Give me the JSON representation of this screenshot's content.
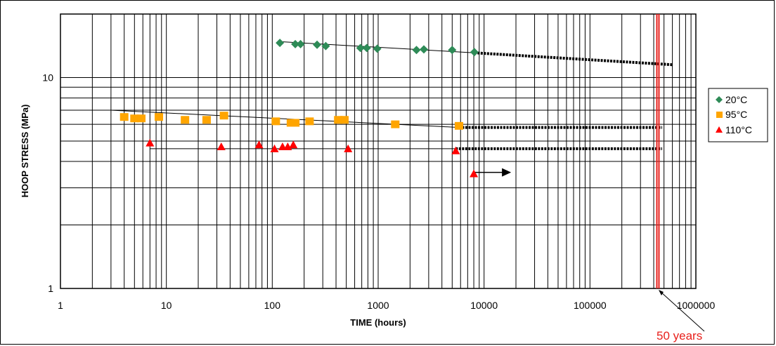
{
  "chart_data": {
    "type": "scatter",
    "title": "",
    "xlabel": "TIME (hours)",
    "ylabel": "HOOP STRESS (MPa)",
    "x_scale": "log",
    "y_scale": "log",
    "xlim": [
      1,
      1000000
    ],
    "ylim": [
      1,
      20
    ],
    "grid": true,
    "legend_position": "right",
    "x_tick_labels": [
      "1",
      "10",
      "100",
      "1000",
      "10000",
      "100000",
      "1000000"
    ],
    "y_tick_labels": [
      "1",
      "10"
    ],
    "series": [
      {
        "name": "20°C",
        "marker": "diamond",
        "color": "#2e8b57",
        "points": [
          [
            118,
            14.6
          ],
          [
            165,
            14.4
          ],
          [
            185,
            14.4
          ],
          [
            265,
            14.3
          ],
          [
            320,
            14.1
          ],
          [
            680,
            13.8
          ],
          [
            780,
            13.8
          ],
          [
            980,
            13.7
          ],
          [
            2300,
            13.5
          ],
          [
            2700,
            13.6
          ],
          [
            5000,
            13.5
          ],
          [
            8100,
            13.2
          ]
        ],
        "trend_solid": [
          [
            115,
            14.8
          ],
          [
            8100,
            13.1
          ]
        ],
        "trend_extrapolated": [
          [
            8100,
            13.1
          ],
          [
            600000,
            11.5
          ]
        ]
      },
      {
        "name": "95°C",
        "marker": "square",
        "color": "#ffa500",
        "points": [
          [
            4,
            6.5
          ],
          [
            5,
            6.4
          ],
          [
            5.8,
            6.4
          ],
          [
            8.5,
            6.5
          ],
          [
            15,
            6.3
          ],
          [
            24,
            6.3
          ],
          [
            35,
            6.6
          ],
          [
            108,
            6.2
          ],
          [
            150,
            6.1
          ],
          [
            165,
            6.1
          ],
          [
            225,
            6.2
          ],
          [
            420,
            6.3
          ],
          [
            480,
            6.3
          ],
          [
            1450,
            6.0
          ],
          [
            5800,
            5.9
          ]
        ],
        "trend_solid": [
          [
            3,
            7.0
          ],
          [
            5800,
            5.8
          ]
        ],
        "trend_extrapolated": [
          [
            5800,
            5.8
          ],
          [
            480000,
            5.8
          ]
        ]
      },
      {
        "name": "110°C",
        "marker": "triangle",
        "color": "#ff0000",
        "points": [
          [
            7,
            4.9
          ],
          [
            33,
            4.7
          ],
          [
            75,
            4.8
          ],
          [
            105,
            4.6
          ],
          [
            125,
            4.7
          ],
          [
            140,
            4.7
          ],
          [
            158,
            4.8
          ],
          [
            520,
            4.6
          ],
          [
            5400,
            4.5
          ],
          [
            8000,
            3.5
          ]
        ],
        "trend_solid": [
          [
            7,
            4.6
          ],
          [
            5400,
            4.6
          ]
        ],
        "trend_extrapolated": [
          [
            5400,
            4.6
          ],
          [
            480000,
            4.6
          ]
        ],
        "runout_arrow": [
          [
            8000,
            3.55
          ],
          [
            18000,
            3.55
          ]
        ]
      }
    ],
    "annotations": [
      {
        "text": "50 years",
        "color": "#e8201c",
        "x": 438000
      }
    ]
  }
}
